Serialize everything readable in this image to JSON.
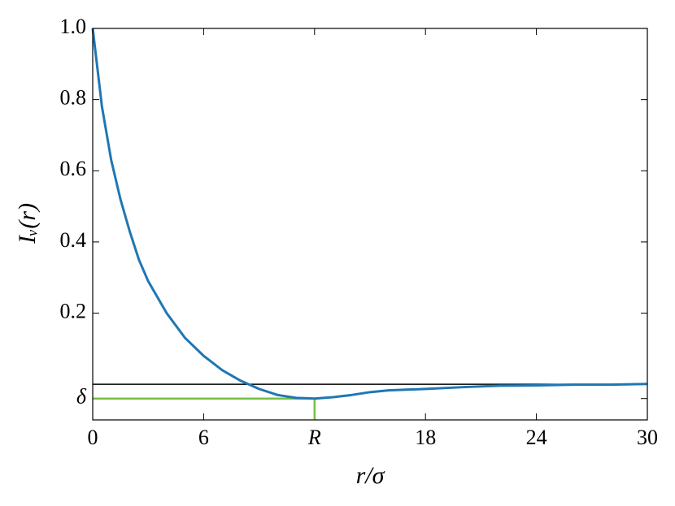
{
  "chart_data": {
    "type": "line",
    "xlabel": "r/σ",
    "ylabel": "Iᵥ(r)",
    "x": [
      0,
      0.5,
      1,
      1.5,
      2,
      2.5,
      3,
      4,
      5,
      6,
      7,
      8,
      9,
      10,
      11,
      12,
      13,
      14,
      15,
      16,
      18,
      20,
      22,
      24,
      26,
      28,
      30
    ],
    "series": [
      {
        "name": "Iv",
        "color": "#1f77b4",
        "values": [
          1.0,
          0.78,
          0.63,
          0.52,
          0.43,
          0.35,
          0.29,
          0.2,
          0.13,
          0.08,
          0.04,
          0.01,
          -0.013,
          -0.03,
          -0.038,
          -0.04,
          -0.036,
          -0.03,
          -0.022,
          -0.017,
          -0.013,
          -0.008,
          -0.004,
          -0.003,
          -0.001,
          -0.001,
          0.001
        ]
      }
    ],
    "hline": {
      "y": 0,
      "color": "#000000"
    },
    "guide": {
      "x": 12,
      "y": -0.04,
      "color": "#77c043"
    },
    "xlim": [
      0,
      30
    ],
    "ylim": [
      -0.1,
      1.0
    ],
    "xticks": [
      0,
      6,
      {
        "value": 12,
        "label": "R"
      },
      18,
      24,
      30
    ],
    "yticks": [
      {
        "value": -0.04,
        "label": "δ"
      },
      0.2,
      0.4,
      0.6,
      0.8,
      {
        "value": 1.0,
        "label": "1.0"
      }
    ],
    "grid": false
  }
}
